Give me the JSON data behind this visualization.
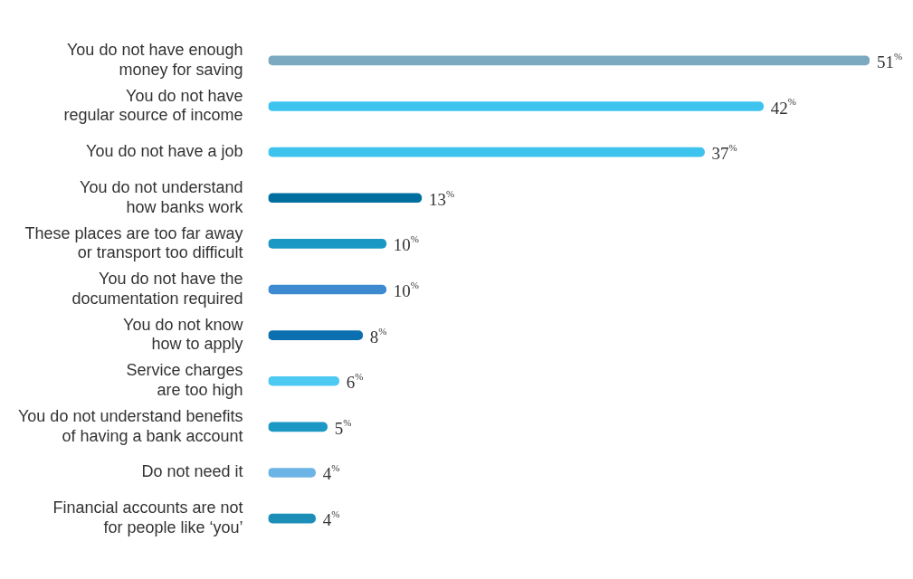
{
  "chart_data": {
    "type": "bar",
    "orientation": "horizontal",
    "categories": [
      "You do not have enough\nmoney for saving",
      "You do not have\nregular source of income",
      "You do not have a job",
      "You do not understand\nhow banks work",
      "These places are too far away\nor transport too difficult",
      "You do not have the\ndocumentation required",
      "You do not know\nhow to apply",
      "Service charges\nare too high",
      "You do not understand benefits\nof having a bank account",
      "Do not need it",
      "Financial accounts are not\nfor people like ‘you’"
    ],
    "values": [
      51,
      42,
      37,
      13,
      10,
      10,
      8,
      6,
      5,
      4,
      4
    ],
    "colors": [
      "#7aa9c0",
      "#3ec3ef",
      "#3ec3ef",
      "#006e9e",
      "#1b98c4",
      "#3d8ad0",
      "#0b6fb0",
      "#4ccaf2",
      "#1b98c4",
      "#6cb4e6",
      "#1b8fb8"
    ],
    "value_labels": [
      "51$^{%}$",
      "42$^{%}$",
      "37$^{%}$",
      "13$^{%}$",
      "10$^{%}$",
      "10$^{%}$",
      "8$^{%}$",
      "6$^{%}$",
      "5$^{%}$",
      "4$^{%}$",
      "4$^{%}$"
    ],
    "legend": false
  }
}
